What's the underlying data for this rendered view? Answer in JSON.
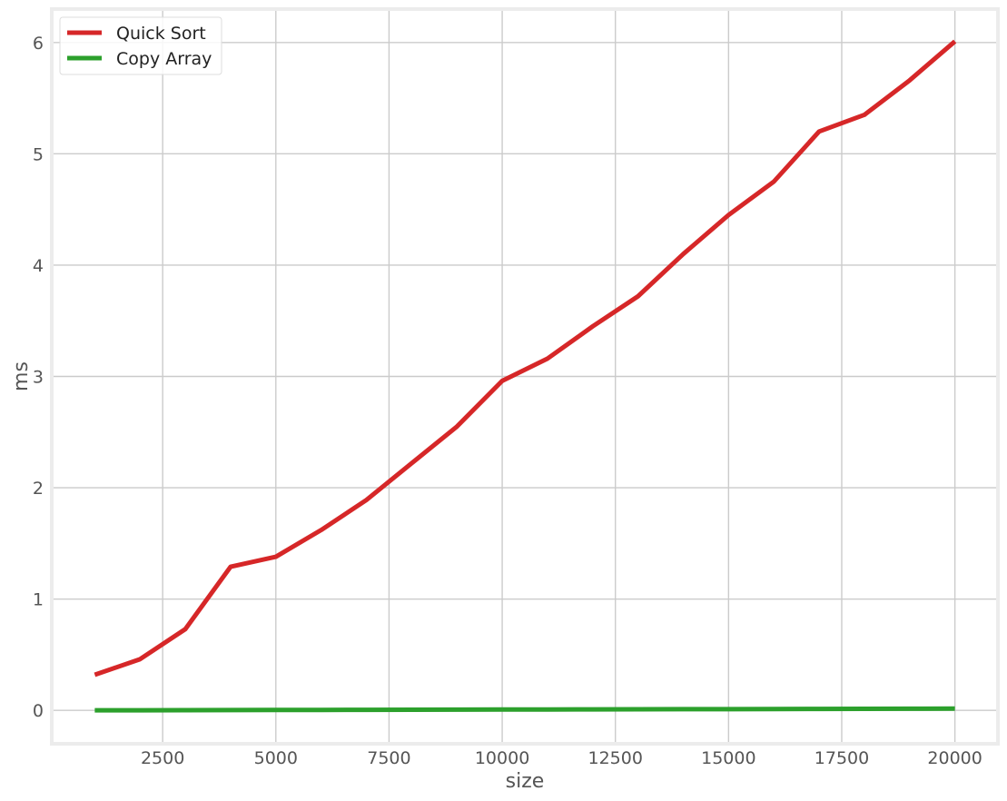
{
  "chart_data": {
    "type": "line",
    "title": "",
    "xlabel": "size",
    "ylabel": "ms",
    "x": [
      1000,
      2000,
      3000,
      4000,
      5000,
      6000,
      7000,
      8000,
      9000,
      10000,
      11000,
      12000,
      13000,
      14000,
      15000,
      16000,
      17000,
      18000,
      19000,
      20000
    ],
    "series": [
      {
        "name": "Quick Sort",
        "color": "#d62728",
        "values": [
          0.32,
          0.46,
          0.73,
          1.29,
          1.38,
          1.62,
          1.89,
          2.22,
          2.55,
          2.96,
          3.16,
          3.45,
          3.72,
          4.1,
          4.45,
          4.75,
          5.2,
          5.35,
          5.66,
          6.01
        ]
      },
      {
        "name": "Copy Array",
        "color": "#2ca02c",
        "values": [
          0.001,
          0.001,
          0.002,
          0.003,
          0.004,
          0.004,
          0.005,
          0.006,
          0.007,
          0.008,
          0.008,
          0.009,
          0.01,
          0.011,
          0.011,
          0.012,
          0.013,
          0.014,
          0.015,
          0.016
        ]
      }
    ],
    "xlim": [
      50,
      20950
    ],
    "ylim": [
      -0.3,
      6.3
    ],
    "xticks": [
      2500,
      5000,
      7500,
      10000,
      12500,
      15000,
      17500,
      20000
    ],
    "xtick_labels": [
      "2500",
      "5000",
      "7500",
      "10000",
      "12500",
      "15000",
      "17500",
      "20000"
    ],
    "yticks": [
      0,
      1,
      2,
      3,
      4,
      5,
      6
    ],
    "ytick_labels": [
      "0",
      "1",
      "2",
      "3",
      "4",
      "5",
      "6"
    ],
    "grid": true,
    "legend_position": "top-left",
    "style": {
      "background": "#ffffff",
      "grid_color": "#cbcbcb",
      "frame_color": "#ececec",
      "tick_label_color": "#555555"
    }
  }
}
